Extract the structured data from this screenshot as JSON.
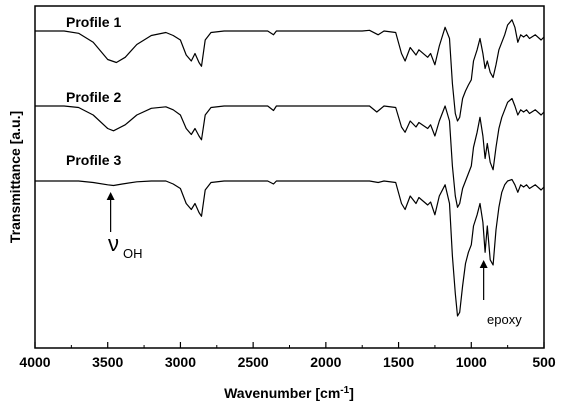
{
  "chart_data": {
    "type": "line",
    "xlabel": "Wavenumber [cm",
    "xlabel_sup": "-1",
    "xlabel_end": "]",
    "ylabel": "Transmittance [a.u.]",
    "xlim": [
      4000,
      500
    ],
    "x_ticks": [
      4000,
      3500,
      3000,
      2500,
      2000,
      1500,
      1000,
      500
    ],
    "x_tick_labels": [
      "4000",
      "3500",
      "3000",
      "2500",
      "2000",
      "1500",
      "1000",
      "500"
    ],
    "y_ticks_shown": false,
    "grid": false,
    "legend": "none",
    "series": [
      {
        "name": "Profile 1",
        "offset": 2.0,
        "points": [
          [
            4000,
            0.0
          ],
          [
            3800,
            0.0
          ],
          [
            3700,
            -0.03
          ],
          [
            3600,
            -0.15
          ],
          [
            3500,
            -0.38
          ],
          [
            3440,
            -0.42
          ],
          [
            3380,
            -0.35
          ],
          [
            3300,
            -0.18
          ],
          [
            3200,
            -0.06
          ],
          [
            3100,
            -0.02
          ],
          [
            3050,
            -0.06
          ],
          [
            3000,
            -0.12
          ],
          [
            2960,
            -0.32
          ],
          [
            2925,
            -0.4
          ],
          [
            2900,
            -0.3
          ],
          [
            2872,
            -0.42
          ],
          [
            2855,
            -0.47
          ],
          [
            2830,
            -0.12
          ],
          [
            2790,
            -0.02
          ],
          [
            2700,
            0.0
          ],
          [
            2400,
            0.0
          ],
          [
            2360,
            -0.05
          ],
          [
            2340,
            0.0
          ],
          [
            2000,
            0.0
          ],
          [
            1750,
            0.0
          ],
          [
            1700,
            0.01
          ],
          [
            1640,
            -0.05
          ],
          [
            1600,
            0.0
          ],
          [
            1520,
            -0.02
          ],
          [
            1480,
            -0.3
          ],
          [
            1455,
            -0.4
          ],
          [
            1420,
            -0.22
          ],
          [
            1380,
            -0.32
          ],
          [
            1360,
            -0.25
          ],
          [
            1300,
            -0.35
          ],
          [
            1280,
            -0.3
          ],
          [
            1250,
            -0.45
          ],
          [
            1220,
            -0.2
          ],
          [
            1180,
            0.05
          ],
          [
            1150,
            -0.1
          ],
          [
            1130,
            -0.7
          ],
          [
            1110,
            -1.1
          ],
          [
            1095,
            -1.2
          ],
          [
            1080,
            -1.15
          ],
          [
            1060,
            -0.9
          ],
          [
            1040,
            -0.8
          ],
          [
            1020,
            -0.72
          ],
          [
            1000,
            -0.65
          ],
          [
            985,
            -0.4
          ],
          [
            960,
            -0.25
          ],
          [
            940,
            -0.1
          ],
          [
            920,
            -0.3
          ],
          [
            905,
            -0.5
          ],
          [
            890,
            -0.4
          ],
          [
            870,
            -0.55
          ],
          [
            850,
            -0.62
          ],
          [
            830,
            -0.45
          ],
          [
            810,
            -0.25
          ],
          [
            790,
            -0.15
          ],
          [
            770,
            -0.05
          ],
          [
            750,
            0.08
          ],
          [
            720,
            0.15
          ],
          [
            700,
            0.05
          ],
          [
            680,
            -0.15
          ],
          [
            660,
            -0.05
          ],
          [
            640,
            -0.08
          ],
          [
            620,
            -0.05
          ],
          [
            600,
            -0.1
          ],
          [
            560,
            -0.05
          ],
          [
            520,
            -0.12
          ],
          [
            500,
            -0.08
          ]
        ]
      },
      {
        "name": "Profile 2",
        "offset": 1.0,
        "points": [
          [
            4000,
            0.0
          ],
          [
            3800,
            0.0
          ],
          [
            3700,
            -0.02
          ],
          [
            3600,
            -0.12
          ],
          [
            3500,
            -0.3
          ],
          [
            3460,
            -0.33
          ],
          [
            3380,
            -0.25
          ],
          [
            3300,
            -0.12
          ],
          [
            3200,
            -0.03
          ],
          [
            3100,
            -0.01
          ],
          [
            3050,
            -0.05
          ],
          [
            3000,
            -0.12
          ],
          [
            2960,
            -0.3
          ],
          [
            2925,
            -0.38
          ],
          [
            2900,
            -0.3
          ],
          [
            2872,
            -0.4
          ],
          [
            2855,
            -0.45
          ],
          [
            2830,
            -0.12
          ],
          [
            2790,
            -0.02
          ],
          [
            2700,
            0.0
          ],
          [
            2400,
            0.0
          ],
          [
            2360,
            -0.06
          ],
          [
            2340,
            0.0
          ],
          [
            2000,
            0.0
          ],
          [
            1750,
            0.0
          ],
          [
            1700,
            0.0
          ],
          [
            1650,
            -0.08
          ],
          [
            1600,
            0.0
          ],
          [
            1520,
            -0.02
          ],
          [
            1480,
            -0.28
          ],
          [
            1455,
            -0.35
          ],
          [
            1420,
            -0.2
          ],
          [
            1380,
            -0.28
          ],
          [
            1360,
            -0.22
          ],
          [
            1300,
            -0.3
          ],
          [
            1280,
            -0.25
          ],
          [
            1250,
            -0.4
          ],
          [
            1220,
            -0.2
          ],
          [
            1180,
            0.0
          ],
          [
            1150,
            -0.2
          ],
          [
            1130,
            -0.8
          ],
          [
            1110,
            -1.2
          ],
          [
            1095,
            -1.35
          ],
          [
            1080,
            -1.3
          ],
          [
            1060,
            -1.1
          ],
          [
            1040,
            -1.0
          ],
          [
            1020,
            -0.9
          ],
          [
            1000,
            -0.8
          ],
          [
            985,
            -0.55
          ],
          [
            960,
            -0.35
          ],
          [
            940,
            -0.15
          ],
          [
            920,
            -0.4
          ],
          [
            905,
            -0.7
          ],
          [
            890,
            -0.5
          ],
          [
            870,
            -0.75
          ],
          [
            850,
            -0.85
          ],
          [
            830,
            -0.55
          ],
          [
            810,
            -0.3
          ],
          [
            790,
            -0.15
          ],
          [
            770,
            -0.05
          ],
          [
            750,
            0.05
          ],
          [
            720,
            0.1
          ],
          [
            700,
            0.0
          ],
          [
            680,
            -0.12
          ],
          [
            660,
            -0.05
          ],
          [
            640,
            -0.08
          ],
          [
            620,
            -0.05
          ],
          [
            600,
            -0.1
          ],
          [
            560,
            -0.05
          ],
          [
            520,
            -0.12
          ],
          [
            500,
            -0.08
          ]
        ]
      },
      {
        "name": "Profile 3",
        "offset": 0.0,
        "points": [
          [
            4000,
            0.0
          ],
          [
            3800,
            0.0
          ],
          [
            3700,
            0.0
          ],
          [
            3600,
            -0.02
          ],
          [
            3500,
            -0.05
          ],
          [
            3460,
            -0.06
          ],
          [
            3400,
            -0.04
          ],
          [
            3300,
            -0.01
          ],
          [
            3200,
            0.0
          ],
          [
            3100,
            0.0
          ],
          [
            3050,
            -0.04
          ],
          [
            3000,
            -0.1
          ],
          [
            2960,
            -0.3
          ],
          [
            2925,
            -0.38
          ],
          [
            2900,
            -0.3
          ],
          [
            2872,
            -0.42
          ],
          [
            2855,
            -0.47
          ],
          [
            2830,
            -0.12
          ],
          [
            2790,
            -0.02
          ],
          [
            2700,
            0.0
          ],
          [
            2400,
            0.0
          ],
          [
            2360,
            -0.04
          ],
          [
            2340,
            0.0
          ],
          [
            2000,
            0.0
          ],
          [
            1750,
            0.0
          ],
          [
            1700,
            0.0
          ],
          [
            1640,
            -0.02
          ],
          [
            1600,
            0.0
          ],
          [
            1520,
            -0.02
          ],
          [
            1480,
            -0.3
          ],
          [
            1455,
            -0.38
          ],
          [
            1420,
            -0.2
          ],
          [
            1380,
            -0.3
          ],
          [
            1360,
            -0.22
          ],
          [
            1300,
            -0.32
          ],
          [
            1280,
            -0.28
          ],
          [
            1250,
            -0.45
          ],
          [
            1220,
            -0.2
          ],
          [
            1180,
            -0.05
          ],
          [
            1150,
            -0.3
          ],
          [
            1130,
            -1.0
          ],
          [
            1110,
            -1.5
          ],
          [
            1095,
            -1.8
          ],
          [
            1080,
            -1.75
          ],
          [
            1060,
            -1.4
          ],
          [
            1040,
            -1.1
          ],
          [
            1020,
            -0.95
          ],
          [
            1000,
            -0.85
          ],
          [
            985,
            -0.6
          ],
          [
            960,
            -0.45
          ],
          [
            940,
            -0.3
          ],
          [
            920,
            -0.55
          ],
          [
            905,
            -0.95
          ],
          [
            890,
            -0.6
          ],
          [
            870,
            -1.05
          ],
          [
            850,
            -1.12
          ],
          [
            830,
            -0.65
          ],
          [
            810,
            -0.35
          ],
          [
            790,
            -0.15
          ],
          [
            770,
            -0.05
          ],
          [
            750,
            0.0
          ],
          [
            720,
            0.02
          ],
          [
            700,
            -0.05
          ],
          [
            680,
            -0.15
          ],
          [
            660,
            -0.05
          ],
          [
            640,
            -0.08
          ],
          [
            620,
            -0.05
          ],
          [
            600,
            -0.1
          ],
          [
            560,
            -0.05
          ],
          [
            520,
            -0.12
          ],
          [
            500,
            -0.08
          ]
        ]
      }
    ],
    "annotations": [
      {
        "symbol": "ν",
        "subscript": "OH",
        "x": 3480,
        "series": "Profile 3"
      },
      {
        "text": "epoxy",
        "x": 915,
        "series": "Profile 3"
      }
    ]
  }
}
